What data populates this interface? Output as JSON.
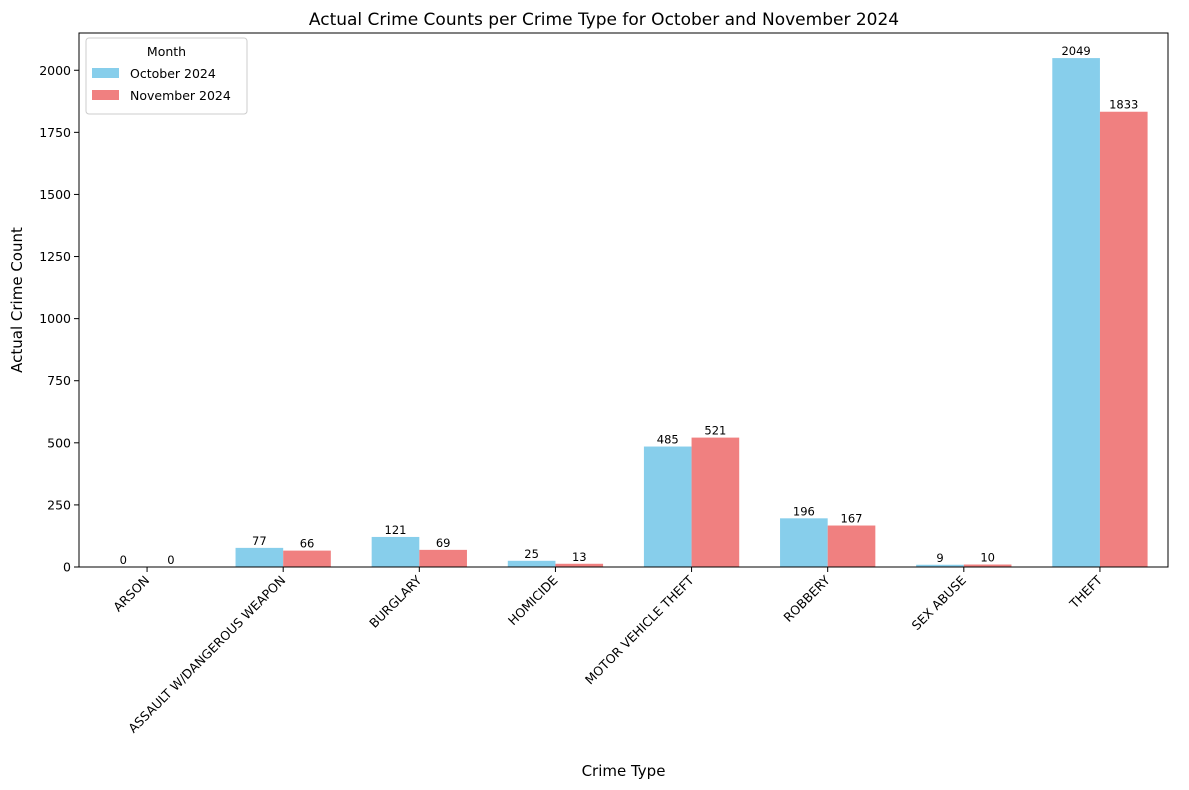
{
  "chart_data": {
    "type": "bar",
    "title": "Actual Crime Counts per Crime Type for October and November 2024",
    "xlabel": "Crime Type",
    "ylabel": "Actual Crime Count",
    "categories": [
      "ARSON",
      "ASSAULT W/DANGEROUS WEAPON",
      "BURGLARY",
      "HOMICIDE",
      "MOTOR VEHICLE THEFT",
      "ROBBERY",
      "SEX ABUSE",
      "THEFT"
    ],
    "series": [
      {
        "name": "October 2024",
        "color": "#87ceeb",
        "values": [
          0,
          77,
          121,
          25,
          485,
          196,
          9,
          2049
        ]
      },
      {
        "name": "November 2024",
        "color": "#f08080",
        "values": [
          0,
          66,
          69,
          13,
          521,
          167,
          10,
          1833
        ]
      }
    ],
    "ylim": [
      0,
      2150
    ],
    "yticks": [
      0,
      250,
      500,
      750,
      1000,
      1250,
      1500,
      1750,
      2000
    ],
    "grid": false,
    "legend": {
      "title": "Month",
      "placement": "top-left"
    }
  }
}
